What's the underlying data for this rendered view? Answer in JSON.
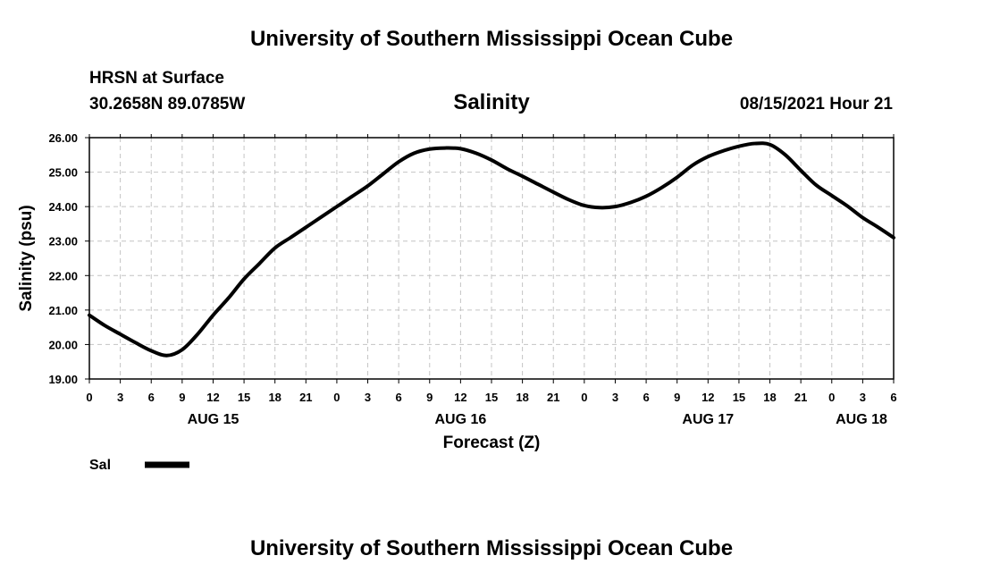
{
  "header": {
    "title": "University of Southern Mississippi Ocean Cube",
    "station": "HRSN at Surface",
    "coords": "30.2658N  89.0785W",
    "datetime": "08/15/2021 Hour 21"
  },
  "footer": {
    "title": "University of Southern Mississippi Ocean Cube"
  },
  "chart_data": {
    "type": "line",
    "title": "Salinity",
    "xlabel": "Forecast (Z)",
    "ylabel": "Salinity (psu)",
    "ylim": [
      19.0,
      26.0
    ],
    "xlim": [
      0,
      78
    ],
    "yticks": [
      "19.00",
      "20.00",
      "21.00",
      "22.00",
      "23.00",
      "24.00",
      "25.00",
      "26.00"
    ],
    "xtick_labels": [
      "0",
      "3",
      "6",
      "9",
      "12",
      "15",
      "18",
      "21",
      "0",
      "3",
      "6",
      "9",
      "12",
      "15",
      "18",
      "21",
      "0",
      "3",
      "6",
      "9",
      "12",
      "15",
      "18",
      "21",
      "0",
      "3",
      "6"
    ],
    "date_labels": [
      {
        "label": "AUG 15",
        "hour_offset": 12
      },
      {
        "label": "AUG 16",
        "hour_offset": 36
      },
      {
        "label": "AUG 17",
        "hour_offset": 60
      },
      {
        "label": "AUG 18",
        "hour_offset": 75
      }
    ],
    "grid": true,
    "legend": [
      {
        "name": "Sal",
        "color": "#000000"
      }
    ],
    "series": [
      {
        "name": "Sal",
        "color": "#000000",
        "x": [
          0,
          1.5,
          3,
          4.5,
          6,
          7.5,
          9,
          10.5,
          12,
          13.5,
          15,
          16.5,
          18,
          19.5,
          21,
          22.5,
          24,
          25.5,
          27,
          28.5,
          30,
          31.5,
          33,
          34.5,
          36,
          37.5,
          39,
          40.5,
          42,
          43.5,
          45,
          46.5,
          48,
          49.5,
          51,
          52.5,
          54,
          55.5,
          57,
          58.5,
          60,
          61.5,
          63,
          64.5,
          66,
          67.5,
          69,
          70.5,
          72,
          73.5,
          75,
          76.5,
          78
        ],
        "y": [
          20.85,
          20.55,
          20.3,
          20.05,
          19.82,
          19.68,
          19.85,
          20.3,
          20.85,
          21.35,
          21.9,
          22.35,
          22.8,
          23.1,
          23.4,
          23.7,
          24.0,
          24.3,
          24.6,
          24.95,
          25.3,
          25.55,
          25.67,
          25.7,
          25.68,
          25.55,
          25.35,
          25.1,
          24.88,
          24.65,
          24.42,
          24.2,
          24.03,
          23.97,
          24.0,
          24.12,
          24.3,
          24.55,
          24.85,
          25.2,
          25.45,
          25.62,
          25.75,
          25.83,
          25.8,
          25.5,
          25.05,
          24.62,
          24.32,
          24.02,
          23.68,
          23.4,
          23.1
        ]
      }
    ]
  }
}
